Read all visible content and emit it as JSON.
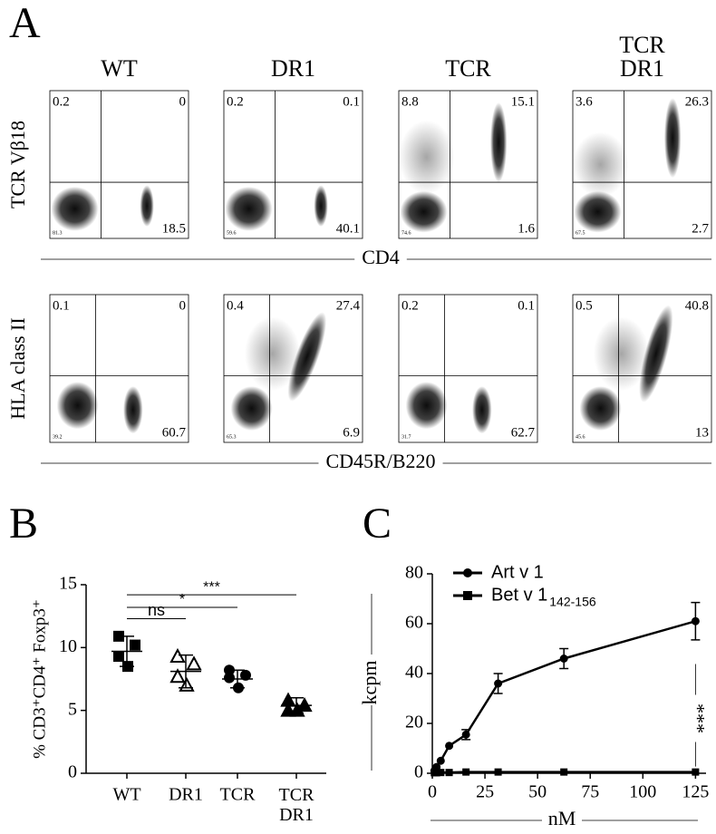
{
  "chart_data": [
    {
      "type": "flow",
      "panel": "A",
      "columns": [
        "WT",
        "DR1",
        "TCR",
        "TCR DR1"
      ],
      "rows": [
        {
          "xlabel": "CD4",
          "ylabel": "TCR Vβ18",
          "plots": [
            {
              "ul": 0.2,
              "ur": 0,
              "lr": 18.5,
              "ll": 81.3
            },
            {
              "ul": 0.2,
              "ur": 0.1,
              "lr": 40.1,
              "ll": 59.6
            },
            {
              "ul": 8.8,
              "ur": 15.1,
              "lr": 1.6,
              "ll": 74.6
            },
            {
              "ul": 3.6,
              "ur": 26.3,
              "lr": 2.7,
              "ll": 67.5
            }
          ]
        },
        {
          "xlabel": "CD45R/B220",
          "ylabel": "HLA class II",
          "plots": [
            {
              "ul": 0.1,
              "ur": 0,
              "lr": 60.7,
              "ll": 39.2
            },
            {
              "ul": 0.4,
              "ur": 27.4,
              "lr": 6.9,
              "ll": 65.3
            },
            {
              "ul": 0.2,
              "ur": 0.1,
              "lr": 62.7,
              "ll": 31.7
            },
            {
              "ul": 0.5,
              "ur": 40.8,
              "lr": 13,
              "ll": 45.6
            }
          ]
        }
      ]
    },
    {
      "type": "dot",
      "panel": "B",
      "ylabel": "% CD3⁺CD4⁺ Foxp3⁺",
      "categories": [
        "WT",
        "DR1",
        "TCR",
        "TCR DR1"
      ],
      "markers": [
        "square",
        "open-triangle",
        "circle",
        "triangle"
      ],
      "values": [
        [
          10.9,
          10.2,
          9.3,
          8.5
        ],
        [
          9.3,
          8.7,
          7.7,
          7.0
        ],
        [
          8.2,
          7.8,
          7.6,
          6.8
        ],
        [
          5.8,
          5.4,
          5.0,
          5.0
        ]
      ],
      "means": [
        9.7,
        8.1,
        7.5,
        5.4
      ],
      "sd": [
        1.2,
        1.3,
        0.7,
        0.6
      ],
      "comparisons": [
        {
          "label": "ns",
          "groups": [
            0,
            1
          ],
          "y": 12.3
        },
        {
          "label": "*",
          "groups": [
            0,
            2
          ],
          "y": 13.2
        },
        {
          "label": "***",
          "groups": [
            0,
            3
          ],
          "y": 14.2
        }
      ],
      "ylim": [
        0,
        15
      ],
      "yticks": [
        0,
        5,
        10,
        15
      ],
      "color": "#000000"
    },
    {
      "type": "line",
      "panel": "C",
      "xlabel": "nM",
      "ylabel": "kcpm",
      "x": [
        1,
        2,
        4,
        8,
        16,
        31.25,
        62.5,
        125
      ],
      "series": [
        {
          "name": "Art v 1",
          "marker": "circle",
          "color": "#000000",
          "values": [
            1,
            2.5,
            5,
            11,
            15.5,
            36,
            46,
            61
          ],
          "errors": [
            0,
            0,
            0,
            0,
            2,
            4,
            4,
            7.5
          ]
        },
        {
          "name": "Bet v 1",
          "subscript": "142-156",
          "marker": "square",
          "color": "#000000",
          "values": [
            0.2,
            0.2,
            0.3,
            0.3,
            0.5,
            0.5,
            0.5,
            0.5
          ],
          "errors": [
            0,
            0,
            0,
            0,
            0,
            0,
            0,
            0
          ]
        }
      ],
      "annotation": {
        "text": "***",
        "x": 125,
        "y": 22
      },
      "legend": "top-left",
      "xlim": [
        0,
        130
      ],
      "xticks": [
        0,
        25,
        50,
        75,
        100,
        125
      ],
      "ylim": [
        0,
        80
      ],
      "yticks": [
        0,
        20,
        40,
        60,
        80
      ]
    }
  ]
}
